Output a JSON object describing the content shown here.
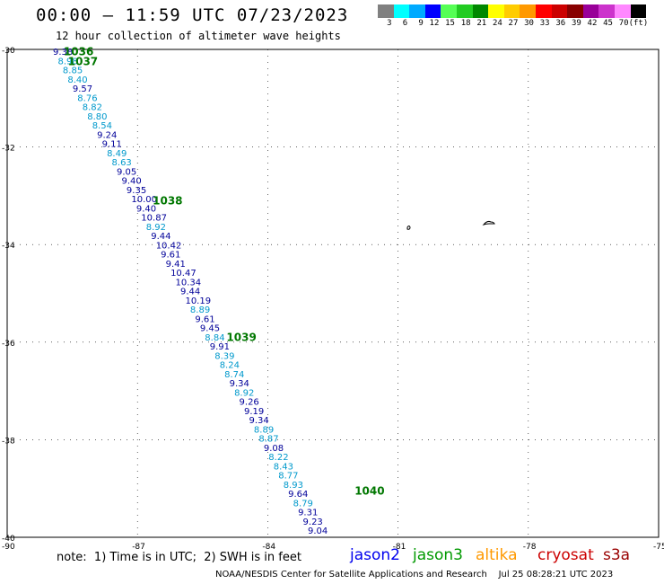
{
  "header": {
    "title": "00:00 – 11:59 UTC 07/23/2023",
    "subtitle": "12 hour collection of altimeter wave heights"
  },
  "colorbar": {
    "colors": [
      "#808080",
      "#00ffff",
      "#00aaff",
      "#0000ff",
      "#55ff55",
      "#22cc22",
      "#008800",
      "#ffff00",
      "#ffcc00",
      "#ff9900",
      "#ff0000",
      "#cc0000",
      "#880000",
      "#990099",
      "#cc33cc",
      "#ff88ff",
      "#000000"
    ],
    "labels": [
      "3",
      "6",
      "9",
      "12",
      "15",
      "18",
      "21",
      "24",
      "27",
      "30",
      "33",
      "36",
      "39",
      "42",
      "45",
      "70",
      "(ft)"
    ]
  },
  "axes": {
    "lat_labels": [
      "-30",
      "-32",
      "-34",
      "-36",
      "-38",
      "-40"
    ],
    "lon_labels": [
      "-90",
      "-87",
      "-84",
      "-81",
      "-78",
      "-75"
    ],
    "lat_values": [
      -30,
      -32,
      -34,
      -36,
      -38,
      -40
    ],
    "lon_values": [
      -90,
      -87,
      -84,
      -81,
      -78,
      -75
    ],
    "lat_range": [
      -30,
      -40
    ],
    "lon_range": [
      -90,
      -75
    ],
    "grid": "dotted"
  },
  "track": {
    "markers": [
      {
        "label": "1036",
        "lat": -30.05,
        "lon": -88.7
      },
      {
        "label": "1037",
        "lat": -30.25,
        "lon": -88.6
      },
      {
        "label": "1038",
        "lat": -33.1,
        "lon": -86.65
      },
      {
        "label": "1039",
        "lat": -35.9,
        "lon": -84.95
      },
      {
        "label": "1040",
        "lat": -39.05,
        "lon": -82.0
      }
    ],
    "points": [
      {
        "v": "9.38",
        "c": "#000099"
      },
      {
        "v": "8.98",
        "c": "#0099cc"
      },
      {
        "v": "8.85",
        "c": "#0099cc"
      },
      {
        "v": "8.40",
        "c": "#0099cc"
      },
      {
        "v": "9.57",
        "c": "#000099"
      },
      {
        "v": "8.76",
        "c": "#0099cc"
      },
      {
        "v": "8.82",
        "c": "#0099cc"
      },
      {
        "v": "8.80",
        "c": "#0099cc"
      },
      {
        "v": "8.54",
        "c": "#0099cc"
      },
      {
        "v": "9.24",
        "c": "#000099"
      },
      {
        "v": "9.11",
        "c": "#000099"
      },
      {
        "v": "8.49",
        "c": "#0099cc"
      },
      {
        "v": "8.63",
        "c": "#0099cc"
      },
      {
        "v": "9.05",
        "c": "#000099"
      },
      {
        "v": "9.40",
        "c": "#000099"
      },
      {
        "v": "9.35",
        "c": "#000099"
      },
      {
        "v": "10.00",
        "c": "#000099"
      },
      {
        "v": "9.40",
        "c": "#000099"
      },
      {
        "v": "10.87",
        "c": "#000099"
      },
      {
        "v": "8.92",
        "c": "#0099cc"
      },
      {
        "v": "9.44",
        "c": "#000099"
      },
      {
        "v": "10.42",
        "c": "#000099"
      },
      {
        "v": "9.61",
        "c": "#000099"
      },
      {
        "v": "9.41",
        "c": "#000099"
      },
      {
        "v": "10.47",
        "c": "#000099"
      },
      {
        "v": "10.34",
        "c": "#000099"
      },
      {
        "v": "9.44",
        "c": "#000099"
      },
      {
        "v": "10.19",
        "c": "#000099"
      },
      {
        "v": "8.89",
        "c": "#0099cc"
      },
      {
        "v": "9.61",
        "c": "#000099"
      },
      {
        "v": "9.45",
        "c": "#000099"
      },
      {
        "v": "8.84",
        "c": "#0099cc"
      },
      {
        "v": "9.91",
        "c": "#000099"
      },
      {
        "v": "8.39",
        "c": "#0099cc"
      },
      {
        "v": "8.24",
        "c": "#0099cc"
      },
      {
        "v": "8.74",
        "c": "#0099cc"
      },
      {
        "v": "9.34",
        "c": "#000099"
      },
      {
        "v": "8.92",
        "c": "#0099cc"
      },
      {
        "v": "9.26",
        "c": "#000099"
      },
      {
        "v": "9.19",
        "c": "#000099"
      },
      {
        "v": "9.34",
        "c": "#000099"
      },
      {
        "v": "8.89",
        "c": "#0099cc"
      },
      {
        "v": "8.87",
        "c": "#0099cc"
      },
      {
        "v": "9.08",
        "c": "#000099"
      },
      {
        "v": "8.22",
        "c": "#0099cc"
      },
      {
        "v": "8.43",
        "c": "#0099cc"
      },
      {
        "v": "8.77",
        "c": "#0099cc"
      },
      {
        "v": "8.93",
        "c": "#0099cc"
      },
      {
        "v": "9.64",
        "c": "#000099"
      },
      {
        "v": "8.79",
        "c": "#0099cc"
      },
      {
        "v": "9.31",
        "c": "#000099"
      },
      {
        "v": "9.23",
        "c": "#000099"
      },
      {
        "v": "9.04",
        "c": "#000099"
      }
    ]
  },
  "legend": {
    "note": "note:  1) Time is in UTC;  2) SWH is in feet",
    "satellites": [
      {
        "name": "jason2",
        "color": "#0000ee"
      },
      {
        "name": "jason3",
        "color": "#009900"
      },
      {
        "name": "altika",
        "color": "#ff9900"
      },
      {
        "name": "cryosat",
        "color": "#cc0000"
      },
      {
        "name": "s3a",
        "color": "#990000"
      }
    ]
  },
  "footer": "NOAA/NESDIS Center for Satellite Applications and Research    Jul 25 08:28:21 UTC 2023"
}
